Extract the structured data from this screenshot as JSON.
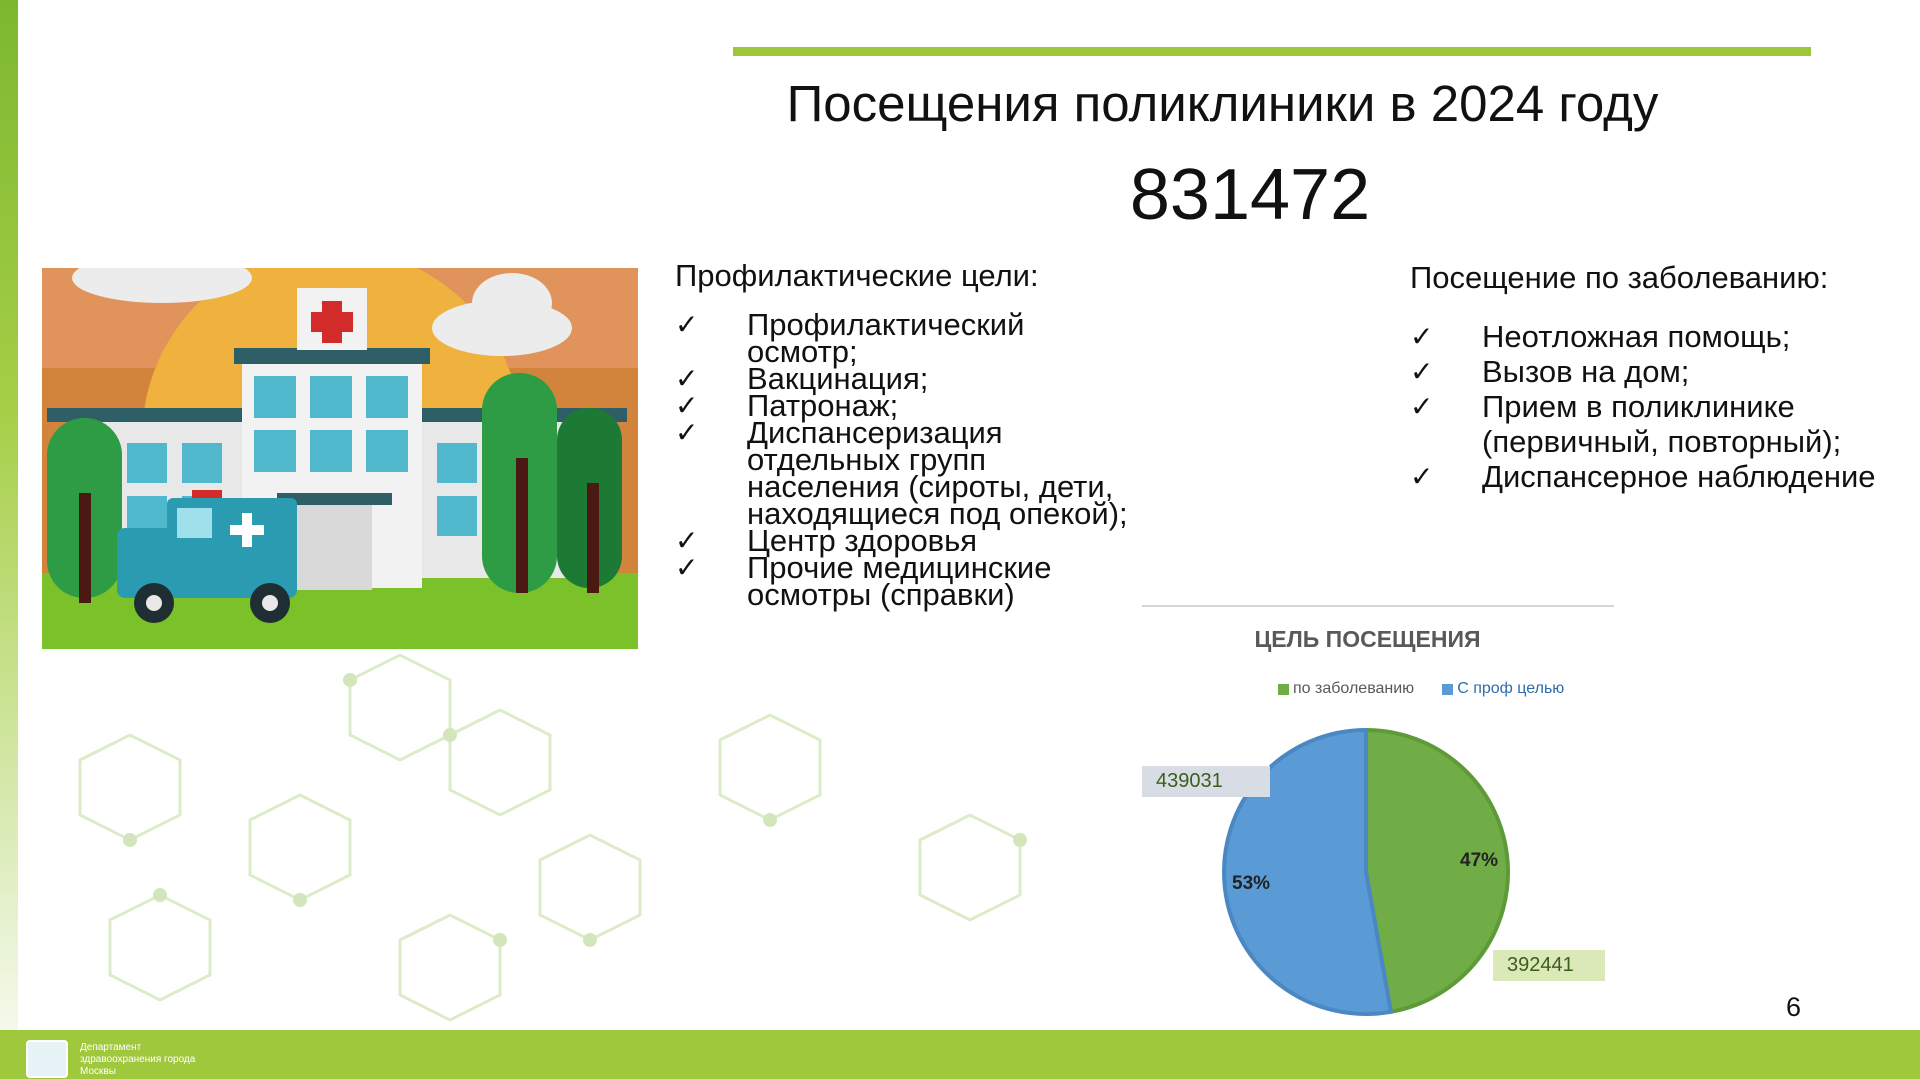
{
  "slide": {
    "title": "Посещения поликлиники в 2024 году",
    "total_visits": "831472",
    "page_number": "6"
  },
  "illustration": {
    "icon": "hospital-with-ambulance-illustration"
  },
  "preventive": {
    "heading": "Профилактические цели:",
    "items": [
      "Профилактический осмотр;",
      "Вакцинация;",
      "Патронаж;",
      "Диспансеризация отдельных групп населения (сироты, дети, находящиеся под опекой);",
      "Центр здоровья",
      "Прочие медицинские осмотры (справки)"
    ]
  },
  "disease": {
    "heading": "Посещение по заболеванию:",
    "items": [
      "Неотложная помощь;",
      "Вызов на дом;",
      "Прием в поликлинике (первичный, повторный);",
      "Диспансерное наблюдение"
    ]
  },
  "check_icon": "✓",
  "chart_data": {
    "type": "pie",
    "title": "ЦЕЛЬ ПОСЕЩЕНИЯ",
    "legend_position": "top",
    "series": [
      {
        "name": "по заболеванию",
        "value": 392441,
        "percent": "47%",
        "label": "392441",
        "color": "#70ad47"
      },
      {
        "name": "С проф целью",
        "value": 439031,
        "percent": "53%",
        "label": "439031",
        "color": "#5b9bd5"
      }
    ]
  },
  "footer": {
    "org_line1": "Департамент",
    "org_line2": "здравоохранения города",
    "org_line3": "Москвы"
  }
}
